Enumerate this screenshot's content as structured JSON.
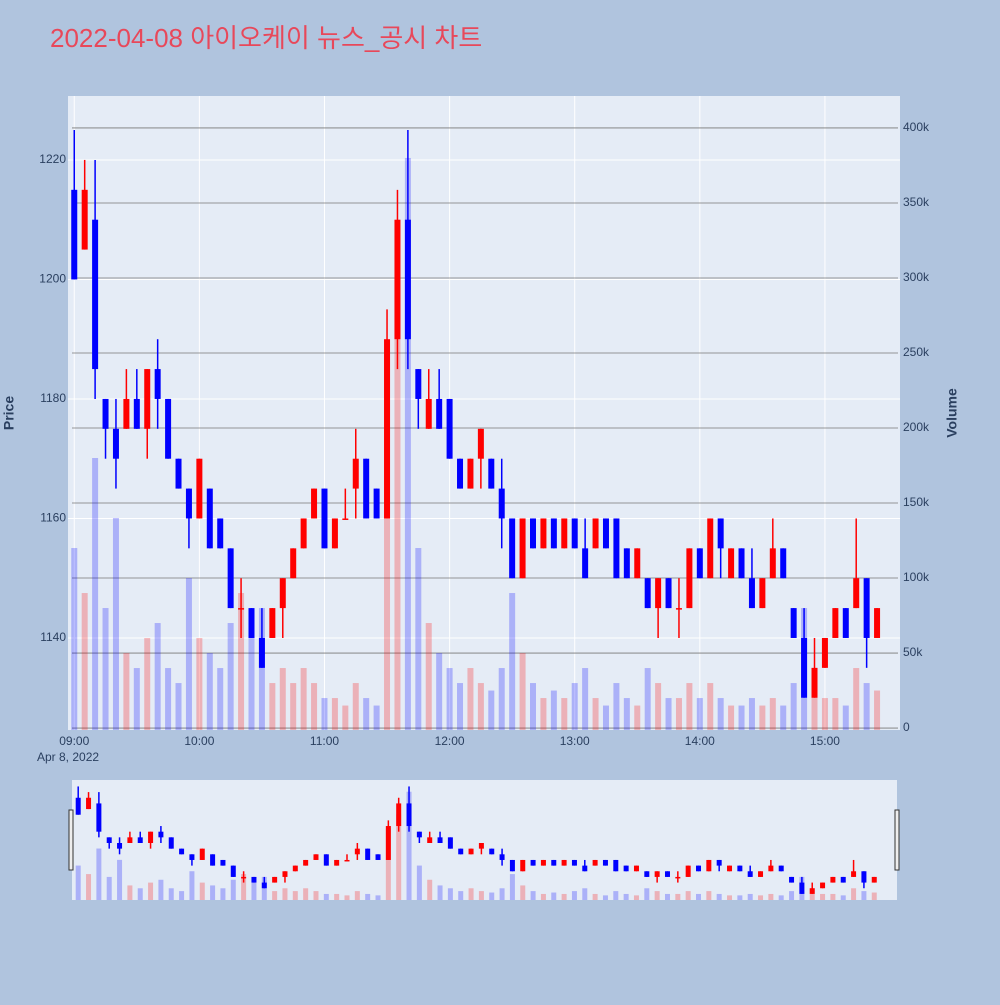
{
  "chart_data": {
    "type": "candlestick",
    "title": "2022-04-08 아이오케이 뉴스_공시 차트",
    "y_label": "Price",
    "y2_label": "Volume",
    "x_date_label": "Apr 8, 2022",
    "increasing_color": "#ff0000",
    "decreasing_color": "#0000ff",
    "x": [
      "09:00",
      "09:05",
      "09:10",
      "09:15",
      "09:20",
      "09:25",
      "09:30",
      "09:35",
      "09:40",
      "09:45",
      "09:50",
      "09:55",
      "10:00",
      "10:05",
      "10:10",
      "10:15",
      "10:20",
      "10:25",
      "10:30",
      "10:35",
      "10:40",
      "10:45",
      "10:50",
      "10:55",
      "11:00",
      "11:05",
      "11:10",
      "11:15",
      "11:20",
      "11:25",
      "11:30",
      "11:35",
      "11:40",
      "11:45",
      "11:50",
      "11:55",
      "12:00",
      "12:05",
      "12:10",
      "12:15",
      "12:20",
      "12:25",
      "12:30",
      "12:35",
      "12:40",
      "12:45",
      "12:50",
      "12:55",
      "13:00",
      "13:05",
      "13:10",
      "13:15",
      "13:20",
      "13:25",
      "13:30",
      "13:35",
      "13:40",
      "13:45",
      "13:50",
      "13:55",
      "14:00",
      "14:05",
      "14:10",
      "14:15",
      "14:20",
      "14:25",
      "14:30",
      "14:35",
      "14:40",
      "14:45",
      "14:50",
      "14:55",
      "15:00",
      "15:05",
      "15:10",
      "15:15",
      "15:20",
      "15:25"
    ],
    "open": [
      1215,
      1205,
      1210,
      1180,
      1175,
      1175,
      1180,
      1175,
      1185,
      1180,
      1170,
      1165,
      1160,
      1165,
      1160,
      1155,
      1145,
      1145,
      1140,
      1140,
      1145,
      1150,
      1155,
      1160,
      1165,
      1155,
      1160,
      1165,
      1170,
      1165,
      1160,
      1190,
      1210,
      1185,
      1175,
      1180,
      1180,
      1170,
      1165,
      1170,
      1170,
      1165,
      1160,
      1150,
      1160,
      1155,
      1160,
      1155,
      1160,
      1155,
      1155,
      1160,
      1160,
      1155,
      1150,
      1150,
      1145,
      1150,
      1145,
      1145,
      1155,
      1150,
      1160,
      1150,
      1155,
      1150,
      1145,
      1150,
      1155,
      1145,
      1140,
      1130,
      1135,
      1140,
      1145,
      1145,
      1150,
      1140
    ],
    "high": [
      1225,
      1220,
      1220,
      1180,
      1180,
      1185,
      1185,
      1185,
      1190,
      1180,
      1170,
      1165,
      1170,
      1165,
      1160,
      1155,
      1150,
      1145,
      1145,
      1145,
      1150,
      1155,
      1160,
      1165,
      1165,
      1160,
      1165,
      1175,
      1170,
      1165,
      1195,
      1215,
      1225,
      1185,
      1185,
      1185,
      1180,
      1170,
      1170,
      1175,
      1170,
      1170,
      1160,
      1160,
      1160,
      1160,
      1160,
      1160,
      1160,
      1160,
      1160,
      1160,
      1160,
      1155,
      1155,
      1150,
      1150,
      1150,
      1150,
      1155,
      1155,
      1160,
      1160,
      1155,
      1155,
      1155,
      1150,
      1160,
      1155,
      1145,
      1145,
      1140,
      1140,
      1145,
      1145,
      1160,
      1150,
      1145
    ],
    "low": [
      1200,
      1205,
      1180,
      1170,
      1165,
      1175,
      1175,
      1170,
      1175,
      1170,
      1165,
      1155,
      1160,
      1155,
      1155,
      1145,
      1140,
      1140,
      1135,
      1140,
      1140,
      1150,
      1155,
      1160,
      1155,
      1155,
      1160,
      1160,
      1160,
      1160,
      1160,
      1185,
      1185,
      1175,
      1175,
      1175,
      1170,
      1165,
      1165,
      1165,
      1165,
      1155,
      1150,
      1150,
      1155,
      1155,
      1155,
      1155,
      1155,
      1150,
      1155,
      1155,
      1150,
      1150,
      1150,
      1145,
      1140,
      1145,
      1140,
      1145,
      1150,
      1150,
      1150,
      1150,
      1150,
      1145,
      1145,
      1150,
      1150,
      1140,
      1130,
      1130,
      1135,
      1140,
      1140,
      1145,
      1135,
      1140
    ],
    "close": [
      1200,
      1215,
      1185,
      1175,
      1170,
      1180,
      1175,
      1185,
      1180,
      1170,
      1165,
      1160,
      1170,
      1155,
      1155,
      1145,
      1145,
      1140,
      1135,
      1145,
      1150,
      1155,
      1160,
      1165,
      1155,
      1160,
      1160,
      1170,
      1160,
      1160,
      1190,
      1210,
      1190,
      1180,
      1180,
      1175,
      1170,
      1165,
      1170,
      1175,
      1165,
      1160,
      1150,
      1160,
      1155,
      1160,
      1155,
      1160,
      1155,
      1150,
      1160,
      1155,
      1150,
      1150,
      1155,
      1145,
      1150,
      1145,
      1145,
      1155,
      1150,
      1160,
      1155,
      1155,
      1150,
      1145,
      1150,
      1155,
      1150,
      1140,
      1130,
      1135,
      1140,
      1145,
      1140,
      1150,
      1140,
      1145
    ],
    "volume": [
      120000,
      90000,
      180000,
      80000,
      140000,
      50000,
      40000,
      60000,
      70000,
      40000,
      30000,
      100000,
      60000,
      50000,
      40000,
      70000,
      90000,
      60000,
      80000,
      30000,
      40000,
      30000,
      40000,
      30000,
      20000,
      20000,
      15000,
      30000,
      20000,
      15000,
      250000,
      300000,
      380000,
      120000,
      70000,
      50000,
      40000,
      30000,
      40000,
      30000,
      25000,
      40000,
      90000,
      50000,
      30000,
      20000,
      25000,
      20000,
      30000,
      40000,
      20000,
      15000,
      30000,
      20000,
      15000,
      40000,
      30000,
      20000,
      20000,
      30000,
      20000,
      30000,
      20000,
      15000,
      15000,
      20000,
      15000,
      20000,
      15000,
      30000,
      80000,
      40000,
      20000,
      20000,
      15000,
      40000,
      30000,
      25000
    ],
    "xlim": [
      "08:57",
      "15:36"
    ],
    "xticks": [
      "09:00",
      "10:00",
      "11:00",
      "12:00",
      "13:00",
      "14:00",
      "15:00"
    ],
    "ylim": [
      1124.6,
      1230.7
    ],
    "yticks": [
      1140,
      1160,
      1180,
      1200,
      1220
    ],
    "y2lim": [
      -1300,
      421300
    ],
    "y2ticks": [
      0,
      {
        "value": 50000,
        "label": "50k"
      },
      {
        "value": 100000,
        "label": "100k"
      },
      {
        "value": 150000,
        "label": "150k"
      },
      {
        "value": 200000,
        "label": "200k"
      },
      {
        "value": 250000,
        "label": "250k"
      },
      {
        "value": 300000,
        "label": "300k"
      },
      {
        "value": 350000,
        "label": "350k"
      },
      {
        "value": 400000,
        "label": "400k"
      }
    ],
    "grid": true,
    "range_slider": true
  }
}
